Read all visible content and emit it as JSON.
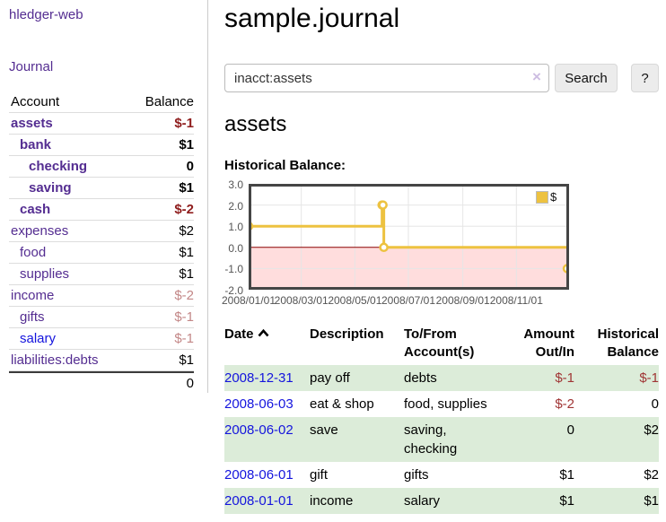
{
  "sidebar": {
    "app_link": "hledger-web",
    "journal_link": "Journal",
    "accounts_table": {
      "headers": [
        "Account",
        "Balance"
      ],
      "rows": [
        {
          "account": "assets",
          "indent": 1,
          "bold": true,
          "balance": "$-1",
          "balance_class": "neg-strong"
        },
        {
          "account": "bank",
          "indent": 2,
          "bold": true,
          "balance": "$1",
          "balance_class": "pos-b"
        },
        {
          "account": "checking",
          "indent": 3,
          "bold": true,
          "balance": "0",
          "balance_class": "pos-b"
        },
        {
          "account": "saving",
          "indent": 3,
          "bold": true,
          "balance": "$1",
          "balance_class": "pos-b"
        },
        {
          "account": "cash",
          "indent": 2,
          "bold": true,
          "balance": "$-2",
          "balance_class": "neg-strong"
        },
        {
          "account": "expenses",
          "indent": 1,
          "bold": false,
          "balance": "$2",
          "balance_class": "pos"
        },
        {
          "account": "food",
          "indent": 2,
          "bold": false,
          "balance": "$1",
          "balance_class": "pos"
        },
        {
          "account": "supplies",
          "indent": 2,
          "bold": false,
          "balance": "$1",
          "balance_class": "pos"
        },
        {
          "account": "income",
          "indent": 1,
          "bold": false,
          "balance": "$-2",
          "balance_class": "neg-dim"
        },
        {
          "account": "gifts",
          "indent": 2,
          "bold": false,
          "balance": "$-1",
          "balance_class": "neg-dim"
        },
        {
          "account": "salary",
          "indent": 2,
          "bold": false,
          "blue": true,
          "balance": "$-1",
          "balance_class": "neg-dim"
        },
        {
          "account": "liabilities:debts",
          "indent": 1,
          "bold": false,
          "balance": "$1",
          "balance_class": "pos"
        }
      ],
      "total": "0"
    }
  },
  "header": {
    "title": "sample.journal"
  },
  "search": {
    "value": "inacct:assets",
    "clear_icon": "×",
    "button_label": "Search",
    "help_label": "?"
  },
  "account_page": {
    "heading": "assets",
    "chart_label": "Historical Balance:"
  },
  "chart_data": {
    "type": "line",
    "style": "steps",
    "title": "Historical Balance:",
    "series": [
      {
        "name": "$",
        "color": "#EDC240",
        "points": [
          [
            "2008-01-01",
            1
          ],
          [
            "2008-06-01",
            2
          ],
          [
            "2008-06-02",
            2
          ],
          [
            "2008-06-03",
            0
          ],
          [
            "2008-12-31",
            -1
          ]
        ]
      }
    ],
    "x_range": [
      "2008-01-01",
      "2008-12-31"
    ],
    "x_ticks": [
      {
        "date": "2008-01-01",
        "label": "2008/01/01"
      },
      {
        "date": "2008-03-01",
        "label": "2008/03/01"
      },
      {
        "date": "2008-05-01",
        "label": "2008/05/01"
      },
      {
        "date": "2008-07-01",
        "label": "2008/07/01"
      },
      {
        "date": "2008-09-01",
        "label": "2008/09/01"
      },
      {
        "date": "2008-11-01",
        "label": "2008/11/01"
      }
    ],
    "y_ticks": [
      {
        "value": 3,
        "label": "3.0"
      },
      {
        "value": 2,
        "label": "2.0"
      },
      {
        "value": 1,
        "label": "1.0"
      },
      {
        "value": 0,
        "label": "0.0"
      },
      {
        "value": -1,
        "label": "-1.0"
      },
      {
        "value": -2,
        "label": "-2.0"
      }
    ],
    "ylim": [
      -2,
      3
    ],
    "grid": true,
    "legend_position": "top-right",
    "legend_label": "$",
    "negative_region_color": "#FFDDDD",
    "zero_line_color": "#8B0000"
  },
  "register": {
    "headers": [
      "Date",
      "Description",
      "To/From Account(s)",
      "Amount Out/In",
      "Historical Balance"
    ],
    "sort_icon": "chevron-up",
    "rows": [
      {
        "date": "2008-12-31",
        "description": "pay off",
        "accounts": "debts",
        "amount": "$-1",
        "amount_neg": true,
        "balance": "$-1",
        "balance_neg": true
      },
      {
        "date": "2008-06-03",
        "description": "eat & shop",
        "accounts": "food, supplies",
        "amount": "$-2",
        "amount_neg": true,
        "balance": "0",
        "balance_neg": false
      },
      {
        "date": "2008-06-02",
        "description": "save",
        "accounts": "saving, checking",
        "amount": "0",
        "amount_neg": false,
        "balance": "$2",
        "balance_neg": false
      },
      {
        "date": "2008-06-01",
        "description": "gift",
        "accounts": "gifts",
        "amount": "$1",
        "amount_neg": false,
        "balance": "$2",
        "balance_neg": false
      },
      {
        "date": "2008-01-01",
        "description": "income",
        "accounts": "salary",
        "amount": "$1",
        "amount_neg": false,
        "balance": "$1",
        "balance_neg": false
      }
    ]
  },
  "colors": {
    "link_purple": "#542D91",
    "link_blue": "#1414DD",
    "neg_strong": "#8F1D1D",
    "neg": "#A03535",
    "neg_dim": "#C38787",
    "row_green": "#DCECD9",
    "chart_series_yellow": "#EDC240",
    "chart_negative_pink": "#FFDDDD",
    "chart_zero_line": "#8B0000",
    "grid_line": "#E6E6E6",
    "chart_border": "#454545"
  }
}
